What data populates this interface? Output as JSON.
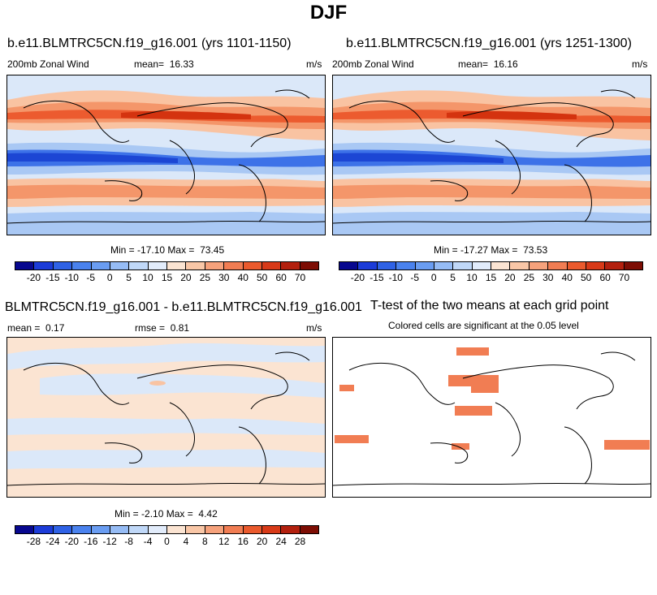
{
  "main_title": "DJF",
  "panel1": {
    "title": "b.e11.BLMTRC5CN.f19_g16.001 (yrs 1101-1150)",
    "variable": "200mb Zonal Wind",
    "mean_label": "mean=",
    "mean_value": "16.33",
    "units": "m/s",
    "min_label": "Min =",
    "min_value": "-17.10",
    "max_label": "Max =",
    "max_value": "73.45"
  },
  "panel2": {
    "title": "b.e11.BLMTRC5CN.f19_g16.001 (yrs 1251-1300)",
    "variable": "200mb Zonal Wind",
    "mean_label": "mean=",
    "mean_value": "16.16",
    "units": "m/s",
    "min_label": "Min =",
    "min_value": "-17.27",
    "max_label": "Max =",
    "max_value": "73.53"
  },
  "panel3": {
    "title": "BLMTRC5CN.f19_g16.001 - b.e11.BLMTRC5CN.f19_g16.001",
    "mean_label": "mean =",
    "mean_value": "0.17",
    "rmse_label": "rmse =",
    "rmse_value": "0.81",
    "units": "m/s",
    "min_label": "Min =",
    "min_value": "-2.10",
    "max_label": "Max =",
    "max_value": "4.42"
  },
  "panel4": {
    "title": "T-test of the two means at each grid point",
    "subtitle": "Colored cells are significant at the 0.05 level"
  },
  "colorbar_top": {
    "labels": [
      "-20",
      "-15",
      "-10",
      "-5",
      "0",
      "5",
      "10",
      "15",
      "20",
      "25",
      "30",
      "40",
      "50",
      "60",
      "70"
    ],
    "colors": [
      "#08088f",
      "#1c3cd8",
      "#2f62e6",
      "#4a82ee",
      "#6a9df2",
      "#96bcf5",
      "#c0d8f8",
      "#e2ecfb",
      "#fbe4d2",
      "#f9c7a7",
      "#f6a27c",
      "#f17d53",
      "#ea5a2d",
      "#d83a18",
      "#b3200e",
      "#7d0d04"
    ]
  },
  "colorbar_diff": {
    "labels": [
      "-28",
      "-24",
      "-20",
      "-16",
      "-12",
      "-8",
      "-4",
      "0",
      "4",
      "8",
      "12",
      "16",
      "20",
      "24",
      "28"
    ],
    "colors": [
      "#08088f",
      "#1c3cd8",
      "#2f62e6",
      "#4a82ee",
      "#6a9df2",
      "#96bcf5",
      "#c0d8f8",
      "#e2ecfb",
      "#fbe4d2",
      "#f9c7a7",
      "#f6a27c",
      "#f17d53",
      "#ea5a2d",
      "#d83a18",
      "#b3200e",
      "#7d0d04"
    ]
  },
  "map_colors": {
    "strong_red": "#d4330f",
    "red": "#ec5b2f",
    "orange": "#f4966a",
    "light_orange": "#f9c3a2",
    "pale": "#fbe4d2",
    "pale_blue": "#dbe8f9",
    "light_blue": "#a9c8f4",
    "blue": "#6a9df2",
    "mid_blue": "#3d72e8",
    "dark_blue": "#1c46d4",
    "sig_fill": "#f17d53"
  }
}
